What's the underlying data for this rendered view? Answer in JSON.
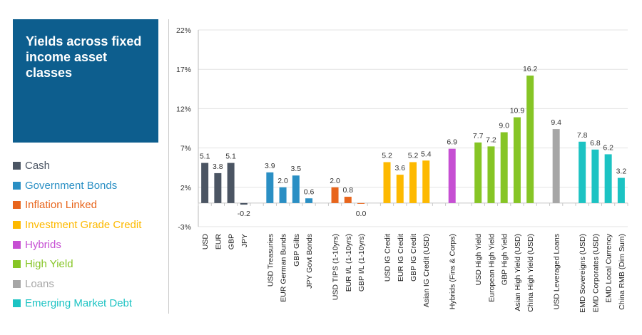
{
  "title": "Yields across fixed income asset classes",
  "legend": [
    {
      "label": "Cash",
      "color": "#4b5563"
    },
    {
      "label": "Government Bonds",
      "color": "#2a8fc4"
    },
    {
      "label": "Inflation Linked",
      "color": "#e8651c"
    },
    {
      "label": "Investment Grade Credit",
      "color": "#fdb900"
    },
    {
      "label": "Hybrids",
      "color": "#c64fd3"
    },
    {
      "label": "High Yield",
      "color": "#86c525"
    },
    {
      "label": "Loans",
      "color": "#a6a6a6"
    },
    {
      "label": "Emerging Market Debt",
      "color": "#1cc3c3"
    }
  ],
  "chart_data": {
    "type": "bar",
    "title": "",
    "xlabel": "",
    "ylabel": "",
    "ylim": [
      -3,
      22
    ],
    "yticks": [
      "22%",
      "17%",
      "12%",
      "7%",
      "2%",
      "-3%"
    ],
    "ytick_values": [
      22,
      17,
      12,
      7,
      2,
      -3
    ],
    "grid": true,
    "categories": [
      "USD",
      "EUR",
      "GBP",
      "JPY",
      "",
      "USD Treasuries",
      "EUR German Bunds",
      "GBP Gilts",
      "JPY Govt Bonds",
      "",
      "USD TIPS (1-10yrs)",
      "EUR I/L (1-10yrs)",
      "GBP I/L (1-10yrs)",
      "",
      "USD IG Credit",
      "EUR IG Credit",
      "GBP IG Credit",
      "Asian IG Credit (USD)",
      "",
      "Hybrids (Fins & Corps)",
      "",
      "USD High Yield",
      "European High Yield",
      "GBP High Yield",
      "Asian High Yield (USD)",
      "China High Yield (USD)",
      "",
      "USD Leveraged Loans",
      "",
      "EMD Sovereigns (USD)",
      "EMD Corporates (USD)",
      "EMD Local Currency",
      "China RMB (Dim Sum)"
    ],
    "values": [
      5.1,
      3.8,
      5.1,
      -0.2,
      null,
      3.9,
      2.0,
      3.5,
      0.6,
      null,
      2.0,
      0.8,
      0.0,
      null,
      5.2,
      3.6,
      5.2,
      5.4,
      null,
      6.9,
      null,
      7.7,
      7.2,
      9.0,
      10.9,
      16.2,
      null,
      9.4,
      null,
      7.8,
      6.8,
      6.2,
      3.2
    ],
    "labels": [
      "5.1",
      "3.8",
      "5.1",
      "-0.2",
      "",
      "3.9",
      "2.0",
      "3.5",
      "0.6",
      "",
      "2.0",
      "0.8",
      "0.0",
      "",
      "5.2",
      "3.6",
      "5.2",
      "5.4",
      "",
      "6.9",
      "",
      "7.7",
      "7.2",
      "9.0",
      "10.9",
      "16.2",
      "",
      "9.4",
      "",
      "7.8",
      "6.8",
      "6.2",
      "3.2"
    ],
    "group": [
      0,
      0,
      0,
      0,
      null,
      1,
      1,
      1,
      1,
      null,
      2,
      2,
      2,
      null,
      3,
      3,
      3,
      3,
      null,
      4,
      null,
      5,
      5,
      5,
      5,
      5,
      null,
      6,
      null,
      7,
      7,
      7,
      7
    ]
  }
}
